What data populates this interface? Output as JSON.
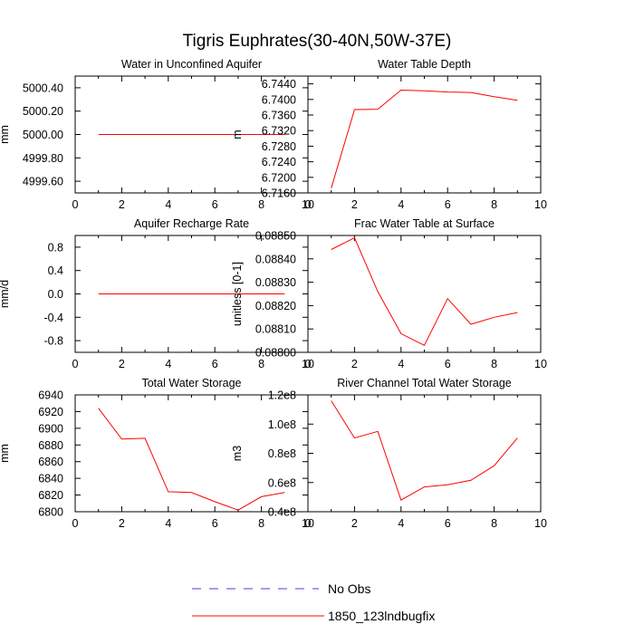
{
  "page_title": "Tigris Euphrates(30-40N,50W-37E)",
  "legend": [
    {
      "label": "No Obs",
      "color": "#3b3bff",
      "dashed": true
    },
    {
      "label": "1850_123lndbugfix",
      "color": "#ff0000",
      "dashed": false
    }
  ],
  "chart_data": [
    {
      "type": "line",
      "title": "Water in Unconfined Aquifer",
      "ylabel": "mm",
      "xlim": [
        0,
        10
      ],
      "ylim": [
        4999.5,
        5000.5
      ],
      "xticks": [
        "0",
        "2",
        "4",
        "6",
        "8",
        "10"
      ],
      "yticks": [
        {
          "value": 4999.6,
          "label": "4999.60"
        },
        {
          "value": 4999.8,
          "label": "4999.80"
        },
        {
          "value": 5000.0,
          "label": "5000.00"
        },
        {
          "value": 5000.2,
          "label": "5000.20"
        },
        {
          "value": 5000.4,
          "label": "5000.40"
        }
      ],
      "series": [
        {
          "name": "1850_123lndbugfix",
          "x": [
            1,
            2,
            3,
            4,
            5,
            6,
            7,
            8,
            9
          ],
          "values": [
            5000,
            5000,
            5000,
            5000,
            5000,
            5000,
            5000,
            5000,
            5000
          ]
        }
      ]
    },
    {
      "type": "line",
      "title": "Water Table Depth",
      "ylabel": "m",
      "xlim": [
        0,
        10
      ],
      "ylim": [
        6.716,
        6.746
      ],
      "xticks": [
        "0",
        "2",
        "4",
        "6",
        "8",
        "10"
      ],
      "yticks": [
        {
          "value": 6.716,
          "label": "6.7160"
        },
        {
          "value": 6.72,
          "label": "6.7200"
        },
        {
          "value": 6.724,
          "label": "6.7240"
        },
        {
          "value": 6.728,
          "label": "6.7280"
        },
        {
          "value": 6.732,
          "label": "6.7320"
        },
        {
          "value": 6.736,
          "label": "6.7360"
        },
        {
          "value": 6.74,
          "label": "6.7400"
        },
        {
          "value": 6.744,
          "label": "6.7440"
        }
      ],
      "series": [
        {
          "name": "1850_123lndbugfix",
          "x": [
            1,
            2,
            3,
            4,
            5,
            6,
            7,
            8,
            9
          ],
          "values": [
            6.7172,
            6.7374,
            6.7375,
            6.7424,
            6.7422,
            6.7419,
            6.7418,
            6.7407,
            6.7398
          ]
        }
      ]
    },
    {
      "type": "line",
      "title": "Aquifer Recharge Rate",
      "ylabel": "mm/d",
      "xlim": [
        0,
        10
      ],
      "ylim": [
        -1,
        1
      ],
      "xticks": [
        "0",
        "2",
        "4",
        "6",
        "8",
        "10"
      ],
      "yticks": [
        {
          "value": -0.8,
          "label": "-0.8"
        },
        {
          "value": -0.4,
          "label": "-0.4"
        },
        {
          "value": 0.0,
          "label": "0.0"
        },
        {
          "value": 0.4,
          "label": "0.4"
        },
        {
          "value": 0.8,
          "label": "0.8"
        }
      ],
      "series": [
        {
          "name": "1850_123lndbugfix",
          "x": [
            1,
            2,
            3,
            4,
            5,
            6,
            7,
            8,
            9
          ],
          "values": [
            0,
            0,
            0,
            0,
            0,
            0,
            0,
            0,
            0
          ]
        }
      ]
    },
    {
      "type": "line",
      "title": "Frac Water Table at Surface",
      "ylabel": "unitless [0-1]",
      "xlim": [
        0,
        10
      ],
      "ylim": [
        0.088,
        0.0885
      ],
      "xticks": [
        "0",
        "2",
        "4",
        "6",
        "8",
        "10"
      ],
      "yticks": [
        {
          "value": 0.088,
          "label": "0.08800"
        },
        {
          "value": 0.0881,
          "label": "0.08810"
        },
        {
          "value": 0.0882,
          "label": "0.08820"
        },
        {
          "value": 0.0883,
          "label": "0.08830"
        },
        {
          "value": 0.0884,
          "label": "0.08840"
        },
        {
          "value": 0.0885,
          "label": "0.08850"
        }
      ],
      "series": [
        {
          "name": "1850_123lndbugfix",
          "x": [
            1,
            2,
            3,
            4,
            5,
            6,
            7,
            8,
            9
          ],
          "values": [
            0.08844,
            0.08849,
            0.08826,
            0.08808,
            0.08803,
            0.08823,
            0.08812,
            0.08815,
            0.08817
          ]
        }
      ]
    },
    {
      "type": "line",
      "title": "Total Water Storage",
      "ylabel": "mm",
      "xlim": [
        0,
        10
      ],
      "ylim": [
        6800,
        6940
      ],
      "xticks": [
        "0",
        "2",
        "4",
        "6",
        "8",
        "10"
      ],
      "yticks": [
        {
          "value": 6800,
          "label": "6800"
        },
        {
          "value": 6820,
          "label": "6820"
        },
        {
          "value": 6840,
          "label": "6840"
        },
        {
          "value": 6860,
          "label": "6860"
        },
        {
          "value": 6880,
          "label": "6880"
        },
        {
          "value": 6900,
          "label": "6900"
        },
        {
          "value": 6920,
          "label": "6920"
        },
        {
          "value": 6940,
          "label": "6940"
        }
      ],
      "series": [
        {
          "name": "1850_123lndbugfix",
          "x": [
            1,
            2,
            3,
            4,
            5,
            6,
            7,
            8,
            9
          ],
          "values": [
            6924,
            6887,
            6888,
            6824,
            6823,
            6812,
            6802,
            6818,
            6823
          ]
        }
      ]
    },
    {
      "type": "line",
      "title": "River Channel Total Water Storage",
      "ylabel": "m3",
      "xlim": [
        0,
        10
      ],
      "ylim": [
        40000000,
        120000000
      ],
      "xticks": [
        "0",
        "2",
        "4",
        "6",
        "8",
        "10"
      ],
      "yticks": [
        {
          "value": 40000000,
          "label": "0.4e8"
        },
        {
          "value": 60000000,
          "label": "0.6e8"
        },
        {
          "value": 80000000,
          "label": "0.8e8"
        },
        {
          "value": 100000000,
          "label": "1.0e8"
        },
        {
          "value": 120000000,
          "label": "1.2e8"
        }
      ],
      "series": [
        {
          "name": "1850_123lndbugfix",
          "x": [
            1,
            2,
            3,
            4,
            5,
            6,
            7,
            8,
            9
          ],
          "values": [
            116000000,
            90500000,
            95000000,
            48000000,
            57000000,
            58500000,
            61500000,
            71500000,
            90500000
          ]
        }
      ]
    }
  ]
}
